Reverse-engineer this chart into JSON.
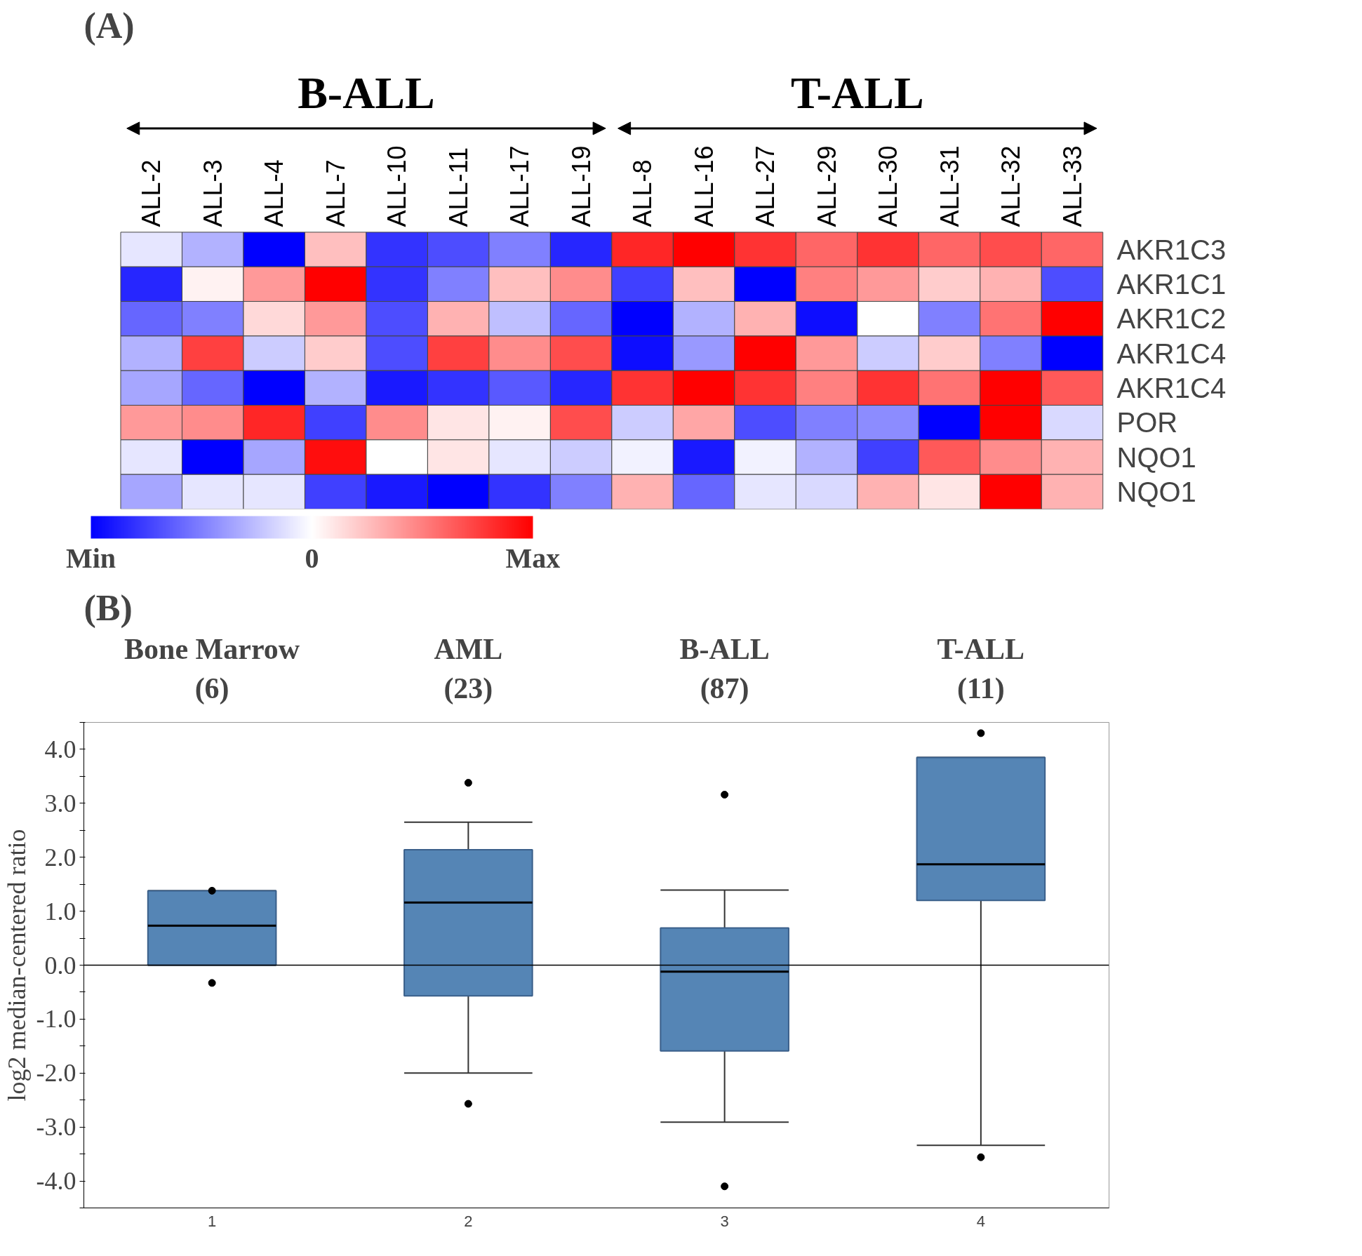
{
  "chart_data": [
    {
      "type": "heatmap",
      "title": "(A)",
      "categories": [
        "ALL-2",
        "ALL-3",
        "ALL-4",
        "ALL-7",
        "ALL-10",
        "ALL-11",
        "ALL-17",
        "ALL-19",
        "ALL-8",
        "ALL-16",
        "ALL-27",
        "ALL-29",
        "ALL-30",
        "ALL-31",
        "ALL-32",
        "ALL-33"
      ],
      "y_categories": [
        "AKR1C3",
        "AKR1C1",
        "AKR1C2",
        "AKR1C4",
        "AKR1C4",
        "POR",
        "NQO1",
        "NQO1"
      ],
      "cells": [
        [
          -0.1,
          -0.3,
          -1.0,
          0.25,
          -0.8,
          -0.7,
          -0.5,
          -0.85,
          0.85,
          1.0,
          0.8,
          0.6,
          0.8,
          0.6,
          0.7,
          0.6
        ],
        [
          -0.85,
          0.05,
          0.4,
          1.0,
          -0.8,
          -0.5,
          0.25,
          0.45,
          -0.75,
          0.25,
          -1.0,
          0.5,
          0.4,
          0.2,
          0.3,
          -0.7
        ],
        [
          -0.6,
          -0.5,
          0.15,
          0.4,
          -0.7,
          0.3,
          -0.25,
          -0.6,
          -1.0,
          -0.3,
          0.3,
          -0.95,
          0.0,
          -0.5,
          0.55,
          1.0
        ],
        [
          -0.3,
          0.75,
          -0.2,
          0.2,
          -0.7,
          0.75,
          0.45,
          0.7,
          -0.95,
          -0.4,
          1.0,
          0.4,
          -0.2,
          0.2,
          -0.5,
          -1.0
        ],
        [
          -0.35,
          -0.6,
          -1.0,
          -0.3,
          -0.9,
          -0.8,
          -0.65,
          -0.85,
          0.8,
          1.0,
          0.8,
          0.5,
          0.8,
          0.55,
          1.0,
          0.65
        ],
        [
          0.4,
          0.45,
          0.85,
          -0.75,
          0.45,
          0.1,
          0.05,
          0.7,
          -0.2,
          0.35,
          -0.7,
          -0.5,
          -0.45,
          -1.0,
          1.0,
          -0.15
        ],
        [
          -0.1,
          -1.0,
          -0.35,
          0.95,
          0.0,
          0.1,
          -0.1,
          -0.2,
          -0.05,
          -0.9,
          -0.05,
          -0.3,
          -0.75,
          0.65,
          0.45,
          0.3
        ],
        [
          -0.35,
          -0.1,
          -0.1,
          -0.75,
          -0.9,
          -1.0,
          -0.8,
          -0.5,
          0.3,
          -0.6,
          -0.1,
          -0.15,
          0.3,
          0.1,
          1.0,
          0.3
        ]
      ],
      "clim": [
        -1,
        1
      ],
      "cticks": [
        {
          "value": -1,
          "label": "Min"
        },
        0,
        {
          "value": 1,
          "label": "Max"
        }
      ],
      "annotations": [
        "B-ALL",
        "T-ALL"
      ]
    },
    {
      "type": "box",
      "title": "(B)",
      "ylabel": "log2 median-centered ratio",
      "categories": [
        "1",
        "2",
        "3",
        "4"
      ],
      "color": "#5585b5",
      "boxes": [
        {
          "low": 0.0,
          "q1": 0.0,
          "median": 0.73,
          "q3": 1.38,
          "high": 1.38,
          "outliers": [
            1.38,
            -0.33
          ]
        },
        {
          "low": -2.0,
          "q1": -0.57,
          "median": 1.16,
          "q3": 2.14,
          "high": 2.65,
          "outliers": [
            3.38,
            -2.57
          ]
        },
        {
          "low": -2.91,
          "q1": -1.59,
          "median": -0.12,
          "q3": 0.69,
          "high": 1.39,
          "outliers": [
            3.16,
            -4.1
          ]
        },
        {
          "low": -3.34,
          "q1": 1.2,
          "median": 1.87,
          "q3": 3.85,
          "high": 3.85,
          "outliers": [
            4.3,
            -3.56
          ]
        }
      ],
      "ylim": [
        -4.5,
        4.5
      ],
      "yticks": [
        {
          "value": -4.5,
          "label": null
        },
        {
          "value": -4,
          "label": "-4.0"
        },
        {
          "value": -3.5,
          "label": null
        },
        {
          "value": -3,
          "label": "-3.0"
        },
        {
          "value": -2.5,
          "label": null
        },
        {
          "value": -2,
          "label": "-2.0"
        },
        {
          "value": -1.5,
          "label": null
        },
        {
          "value": -1,
          "label": "-1.0"
        },
        {
          "value": -0.5,
          "label": null
        },
        {
          "value": 0,
          "label": "0.0"
        },
        {
          "value": 0.5,
          "label": null
        },
        {
          "value": 1,
          "label": "1.0"
        },
        {
          "value": 1.5,
          "label": null
        },
        {
          "value": 2,
          "label": "2.0"
        },
        {
          "value": 2.5,
          "label": null
        },
        {
          "value": 3,
          "label": "3.0"
        },
        {
          "value": 3.5,
          "label": null
        },
        {
          "value": 4,
          "label": "4.0"
        },
        {
          "value": 4.5,
          "label": null
        }
      ],
      "ref_lines": [
        {
          "axis": "y",
          "value": 0
        }
      ],
      "annotations": [
        "Bone Marrow\n(6)",
        "AML\n(23)",
        "B-ALL\n(87)",
        "T-ALL\n(11)"
      ]
    }
  ]
}
